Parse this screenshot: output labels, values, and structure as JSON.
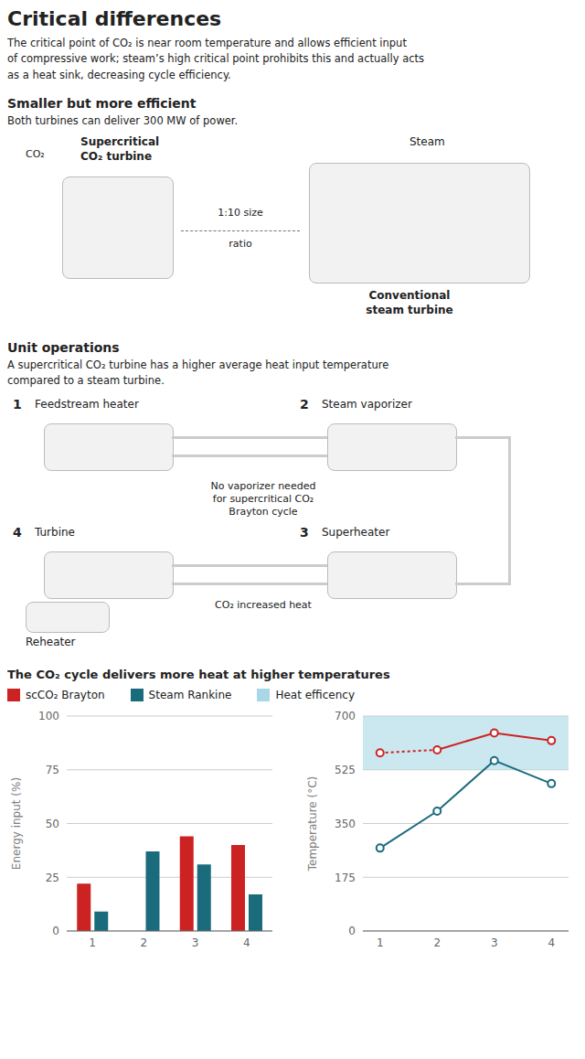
{
  "title": "Critical differences",
  "subtitle": "The critical point of CO₂ is near room temperature and allows efficient input\nof compressive work; steam’s high critical point prohibits this and actually acts\nas a heat sink, decreasing cycle efficiency.",
  "sections": [
    {
      "title": "Smaller but more efficient",
      "subtitle": "Both turbines can deliver 300 MW of power.",
      "annotations": [
        "CO₂",
        "Supercritical\nCO₂ turbine",
        "1:10 size",
        "ratio",
        "Steam",
        "Conventional\nsteam turbine"
      ]
    },
    {
      "title": "Unit operations",
      "subtitle": "A supercritical CO₂ turbine has a higher average heat input temperature\ncompared to a steam turbine.",
      "annotations": [
        "1",
        "Feedstream heater",
        "2",
        "Steam vaporizer",
        "No vaporizer needed\nfor supercritical CO₂\nBrayton cycle",
        "4",
        "Turbine",
        "3",
        "Superheater",
        "Reheater",
        "CO₂ increased heat"
      ]
    }
  ],
  "charts_title": "The CO₂ cycle delivers more heat at higher temperatures",
  "chart_data": [
    {
      "type": "bar",
      "categories": [
        1,
        2,
        3,
        4
      ],
      "ylabel": "Energy input (%)",
      "ylim": [
        0,
        100
      ],
      "yticks": [
        0,
        25,
        50,
        75,
        100
      ],
      "grid": true,
      "series": [
        {
          "name": "scCO₂ Brayton",
          "color": "#cc2222",
          "values": [
            22,
            0,
            44,
            40
          ]
        },
        {
          "name": "Steam Rankine",
          "color": "#1a6b7c",
          "values": [
            9,
            37,
            31,
            17
          ]
        }
      ]
    },
    {
      "type": "line",
      "x": [
        1,
        2,
        3,
        4
      ],
      "xlim": [
        0.7,
        4.3
      ],
      "xticks": [
        1,
        2,
        3,
        4
      ],
      "ylabel": "Temperature (°C)",
      "ylim": [
        0,
        700
      ],
      "yticks": [
        0,
        175,
        350,
        525,
        700
      ],
      "grid": true,
      "marker": "o",
      "series": [
        {
          "name": "scCO₂ Brayton",
          "color": "#cc2222",
          "values": [
            580,
            590,
            645,
            620
          ]
        },
        {
          "name": "Steam Rankine",
          "color": "#1a6b7c",
          "values": [
            270,
            390,
            555,
            480
          ]
        }
      ],
      "band": {
        "name": "Heat efficency",
        "color": "#a8d8e8",
        "from": 525,
        "to": 700
      }
    }
  ]
}
